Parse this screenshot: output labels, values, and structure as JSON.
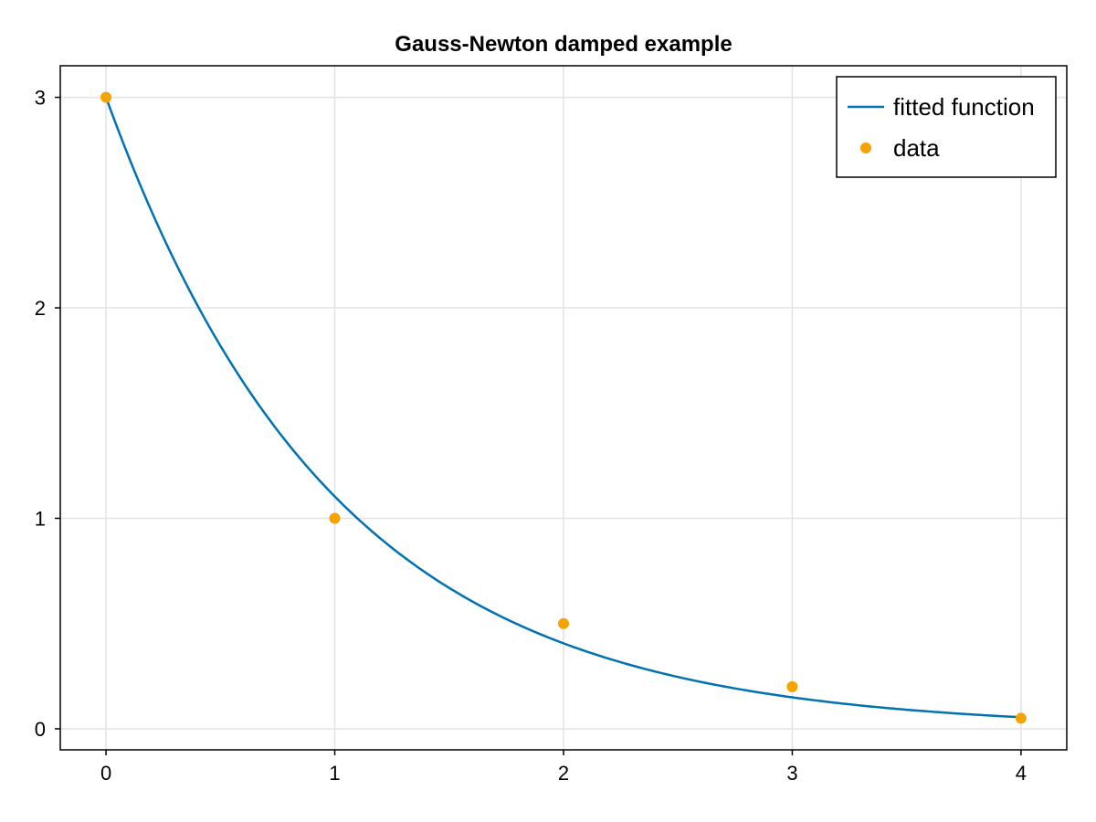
{
  "chart_data": {
    "type": "line",
    "title": "Gauss-Newton damped example",
    "xlabel": "",
    "ylabel": "",
    "xlim": [
      -0.2,
      4.2
    ],
    "ylim": [
      -0.1,
      3.15
    ],
    "x_ticks": [
      0,
      1,
      2,
      3,
      4
    ],
    "y_ticks": [
      0,
      1,
      2,
      3
    ],
    "x_tick_labels": [
      "0",
      "1",
      "2",
      "3",
      "4"
    ],
    "y_tick_labels": [
      "0",
      "1",
      "2",
      "3"
    ],
    "grid": true,
    "legend_position": "top-right",
    "series": [
      {
        "name": "fitted function",
        "kind": "line",
        "color": "#0072b2",
        "model": "a*exp(-b*x)",
        "params": {
          "a": 3.0,
          "b": 1.0
        },
        "x_range": [
          0,
          4
        ]
      },
      {
        "name": "data",
        "kind": "scatter",
        "color": "#f5a300",
        "x": [
          0,
          1,
          2,
          3,
          4
        ],
        "y": [
          3.0,
          1.0,
          0.5,
          0.2,
          0.05
        ]
      }
    ]
  }
}
